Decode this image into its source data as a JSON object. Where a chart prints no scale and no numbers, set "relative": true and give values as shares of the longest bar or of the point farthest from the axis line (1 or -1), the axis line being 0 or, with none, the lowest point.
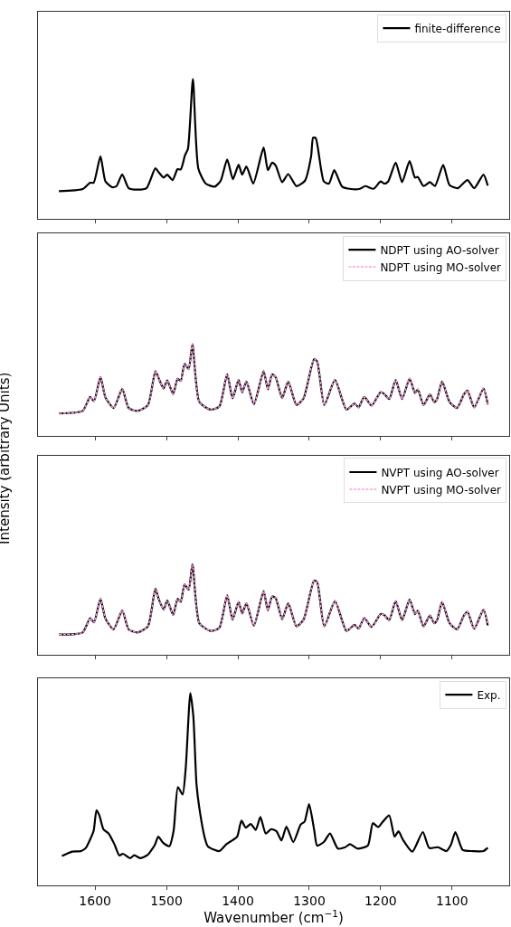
{
  "chart_data": [
    {
      "type": "line",
      "relative": true,
      "xlim": [
        1680,
        1020
      ],
      "xticks": [
        1600,
        1500,
        1400,
        1300,
        1200,
        1100
      ],
      "tick_labels": false,
      "legend": "top right",
      "grid": false,
      "marker": "none",
      "series": [
        {
          "name": "finite-difference",
          "color": "#000000",
          "line_style": "solid",
          "x": [
            1650.7,
            1617.5,
            1607,
            1602,
            1592.5,
            1585.5,
            1576,
            1570,
            1562,
            1553,
            1540.6,
            1528,
            1515.6,
            1510.6,
            1504,
            1499,
            1491.5,
            1484.5,
            1480,
            1474,
            1470,
            1463,
            1455.4,
            1445,
            1432.5,
            1424,
            1415,
            1407,
            1399,
            1394,
            1388,
            1378.5,
            1364,
            1358,
            1352,
            1347,
            1338,
            1329.5,
            1318,
            1306,
            1297.5,
            1294.6,
            1291,
            1279.6,
            1272.5,
            1265,
            1254,
            1241.5,
            1229,
            1221.6,
            1210,
            1200,
            1195,
            1189.5,
            1179,
            1170,
            1159.5,
            1152,
            1148,
            1140,
            1131,
            1124,
            1112.5,
            1103.5,
            1092,
            1078.5,
            1069,
            1056,
            1050
          ],
          "values": [
            0.198,
            0.213,
            0.258,
            0.258,
            0.447,
            0.267,
            0.226,
            0.234,
            0.318,
            0.219,
            0.209,
            0.219,
            0.361,
            0.331,
            0.295,
            0.316,
            0.277,
            0.355,
            0.353,
            0.456,
            0.499,
            1.0,
            0.359,
            0.252,
            0.23,
            0.273,
            0.424,
            0.284,
            0.387,
            0.316,
            0.374,
            0.252,
            0.51,
            0.348,
            0.402,
            0.381,
            0.262,
            0.32,
            0.234,
            0.273,
            0.445,
            0.581,
            0.578,
            0.267,
            0.252,
            0.348,
            0.23,
            0.213,
            0.215,
            0.234,
            0.215,
            0.267,
            0.252,
            0.267,
            0.402,
            0.262,
            0.413,
            0.295,
            0.299,
            0.234,
            0.262,
            0.234,
            0.385,
            0.241,
            0.219,
            0.277,
            0.219,
            0.316,
            0.237
          ]
        }
      ]
    },
    {
      "type": "line",
      "relative": true,
      "xlim": [
        1680,
        1020
      ],
      "xticks": [
        1600,
        1500,
        1400,
        1300,
        1200,
        1100
      ],
      "tick_labels": false,
      "legend": "top right",
      "grid": false,
      "marker": "none",
      "x": [
        1650.7,
        1617.5,
        1607,
        1601.5,
        1592.5,
        1585.5,
        1574,
        1562,
        1553,
        1540.6,
        1526,
        1515.6,
        1510.6,
        1504,
        1499,
        1490.7,
        1484.5,
        1480,
        1474.8,
        1469,
        1463.7,
        1454,
        1438.5,
        1426,
        1415,
        1407.5,
        1399,
        1394,
        1388,
        1377.6,
        1364,
        1358,
        1352,
        1347,
        1338,
        1329.5,
        1318,
        1308,
        1293.4,
        1289,
        1279,
        1264,
        1248,
        1236.6,
        1231,
        1223,
        1212.8,
        1200,
        1195,
        1188,
        1179,
        1170,
        1159.5,
        1152,
        1148,
        1140,
        1131,
        1125,
        1121,
        1114,
        1103.5,
        1093,
        1083.5,
        1078.5,
        1069,
        1056,
        1050
      ],
      "series": [
        {
          "name": "NDPT using AO-solver",
          "color": "#000000",
          "line_style": "solid",
          "values": [
            0.243,
            0.27,
            0.424,
            0.378,
            0.641,
            0.418,
            0.303,
            0.51,
            0.303,
            0.27,
            0.336,
            0.707,
            0.622,
            0.516,
            0.605,
            0.457,
            0.622,
            0.599,
            0.786,
            0.73,
            1.0,
            0.368,
            0.286,
            0.319,
            0.674,
            0.408,
            0.609,
            0.474,
            0.592,
            0.342,
            0.707,
            0.507,
            0.671,
            0.638,
            0.411,
            0.592,
            0.336,
            0.408,
            0.836,
            0.813,
            0.336,
            0.609,
            0.286,
            0.352,
            0.309,
            0.424,
            0.329,
            0.477,
            0.457,
            0.401,
            0.609,
            0.401,
            0.625,
            0.467,
            0.507,
            0.336,
            0.451,
            0.368,
            0.401,
            0.592,
            0.368,
            0.303,
            0.451,
            0.493,
            0.309,
            0.516,
            0.342
          ]
        },
        {
          "name": "NDPT using MO-solver",
          "color": "#ff9ee0",
          "line_style": "dashed",
          "values": [
            0.243,
            0.27,
            0.424,
            0.378,
            0.641,
            0.418,
            0.303,
            0.51,
            0.303,
            0.27,
            0.336,
            0.707,
            0.622,
            0.516,
            0.605,
            0.457,
            0.622,
            0.599,
            0.786,
            0.73,
            1.0,
            0.368,
            0.286,
            0.319,
            0.674,
            0.408,
            0.609,
            0.474,
            0.592,
            0.342,
            0.707,
            0.507,
            0.671,
            0.638,
            0.411,
            0.592,
            0.336,
            0.408,
            0.836,
            0.813,
            0.336,
            0.609,
            0.286,
            0.352,
            0.309,
            0.424,
            0.329,
            0.477,
            0.457,
            0.401,
            0.609,
            0.401,
            0.625,
            0.467,
            0.507,
            0.336,
            0.451,
            0.368,
            0.401,
            0.592,
            0.368,
            0.303,
            0.451,
            0.493,
            0.309,
            0.516,
            0.342
          ]
        }
      ]
    },
    {
      "type": "line",
      "relative": true,
      "xlim": [
        1680,
        1020
      ],
      "xticks": [
        1600,
        1500,
        1400,
        1300,
        1200,
        1100
      ],
      "tick_labels": false,
      "legend": "top right",
      "grid": false,
      "marker": "none",
      "x": [
        1650.7,
        1617.5,
        1607,
        1601.5,
        1592.5,
        1585.5,
        1574,
        1562,
        1553,
        1540.6,
        1526,
        1515.6,
        1510.6,
        1504,
        1499,
        1490.7,
        1484.5,
        1480,
        1474.8,
        1469,
        1463.7,
        1454,
        1438.5,
        1426,
        1415,
        1407.5,
        1399,
        1394,
        1388,
        1377.6,
        1364,
        1358,
        1352,
        1347,
        1338,
        1329.5,
        1318,
        1308,
        1293.4,
        1289,
        1279,
        1264,
        1248,
        1236.6,
        1231,
        1223,
        1212.8,
        1200,
        1195,
        1188,
        1179,
        1170,
        1159.5,
        1152,
        1148,
        1140,
        1131,
        1125,
        1121,
        1114,
        1103.5,
        1093,
        1083.5,
        1078.5,
        1069,
        1056,
        1050
      ],
      "ylabel": "Intensity (arbitrary Units)",
      "series": [
        {
          "name": "NVPT using AO-solver",
          "color": "#000000",
          "line_style": "solid",
          "values": [
            0.22,
            0.244,
            0.403,
            0.356,
            0.617,
            0.397,
            0.278,
            0.488,
            0.278,
            0.244,
            0.312,
            0.729,
            0.607,
            0.498,
            0.6,
            0.437,
            0.617,
            0.583,
            0.776,
            0.719,
            1.0,
            0.346,
            0.261,
            0.295,
            0.658,
            0.386,
            0.583,
            0.454,
            0.566,
            0.319,
            0.702,
            0.488,
            0.644,
            0.624,
            0.39,
            0.566,
            0.312,
            0.386,
            0.82,
            0.803,
            0.312,
            0.593,
            0.261,
            0.329,
            0.285,
            0.403,
            0.305,
            0.447,
            0.437,
            0.38,
            0.593,
            0.38,
            0.61,
            0.447,
            0.488,
            0.312,
            0.431,
            0.346,
            0.38,
            0.583,
            0.346,
            0.278,
            0.431,
            0.475,
            0.285,
            0.498,
            0.319
          ]
        },
        {
          "name": "NVPT using MO-solver",
          "color": "#ff9ee0",
          "line_style": "dashed",
          "values": [
            0.22,
            0.244,
            0.403,
            0.356,
            0.617,
            0.397,
            0.278,
            0.488,
            0.278,
            0.244,
            0.312,
            0.729,
            0.607,
            0.498,
            0.6,
            0.437,
            0.617,
            0.583,
            0.776,
            0.719,
            1.0,
            0.346,
            0.261,
            0.295,
            0.658,
            0.386,
            0.583,
            0.454,
            0.566,
            0.319,
            0.702,
            0.488,
            0.644,
            0.624,
            0.39,
            0.566,
            0.312,
            0.386,
            0.82,
            0.803,
            0.312,
            0.593,
            0.261,
            0.329,
            0.285,
            0.403,
            0.305,
            0.447,
            0.437,
            0.38,
            0.593,
            0.38,
            0.61,
            0.447,
            0.488,
            0.312,
            0.431,
            0.346,
            0.38,
            0.583,
            0.346,
            0.278,
            0.431,
            0.475,
            0.285,
            0.498,
            0.319
          ]
        }
      ]
    },
    {
      "type": "line",
      "relative": true,
      "xlabel": "Wavenumber (cm$^{−1}$)",
      "xlim": [
        1680,
        1020
      ],
      "xticks": [
        1600,
        1500,
        1400,
        1300,
        1200,
        1100
      ],
      "tick_labels": "x",
      "legend": "top right",
      "grid": false,
      "marker": "none",
      "series": [
        {
          "name": "Exp.",
          "color": "#000000",
          "line_style": "solid",
          "x": [
            1646.5,
            1640,
            1632,
            1619.5,
            1613,
            1607,
            1602,
            1598,
            1594,
            1588.4,
            1581,
            1573,
            1566,
            1561,
            1551,
            1545,
            1537,
            1527,
            1516.5,
            1511.5,
            1505,
            1496,
            1490,
            1484,
            1477.4,
            1473,
            1466.6,
            1462.4,
            1458,
            1454,
            1446,
            1442,
            1426,
            1416,
            1407.6,
            1401,
            1395,
            1389,
            1382,
            1375,
            1368.5,
            1361,
            1353.5,
            1346,
            1339,
            1332,
            1322.4,
            1312,
            1306.6,
            1300.3,
            1293,
            1289,
            1279.6,
            1271,
            1260,
            1249.6,
            1243,
            1232.7,
            1218,
            1211,
            1203.5,
            1197,
            1188,
            1180.6,
            1175,
            1169,
            1155.6,
            1141,
            1132,
            1120,
            1108,
            1101.6,
            1095.4,
            1085,
            1070.5,
            1056,
            1050
          ],
          "values": [
            0.152,
            0.163,
            0.175,
            0.178,
            0.194,
            0.238,
            0.284,
            0.391,
            0.363,
            0.292,
            0.269,
            0.214,
            0.155,
            0.164,
            0.141,
            0.156,
            0.141,
            0.156,
            0.209,
            0.253,
            0.222,
            0.203,
            0.284,
            0.511,
            0.472,
            0.613,
            1.0,
            0.878,
            0.527,
            0.402,
            0.241,
            0.202,
            0.178,
            0.214,
            0.234,
            0.253,
            0.336,
            0.3,
            0.319,
            0.288,
            0.355,
            0.269,
            0.292,
            0.281,
            0.233,
            0.305,
            0.225,
            0.316,
            0.331,
            0.422,
            0.284,
            0.206,
            0.225,
            0.269,
            0.191,
            0.198,
            0.214,
            0.191,
            0.206,
            0.323,
            0.303,
            0.331,
            0.363,
            0.253,
            0.281,
            0.238,
            0.175,
            0.277,
            0.194,
            0.198,
            0.178,
            0.211,
            0.277,
            0.183,
            0.178,
            0.178,
            0.195
          ]
        }
      ]
    }
  ]
}
